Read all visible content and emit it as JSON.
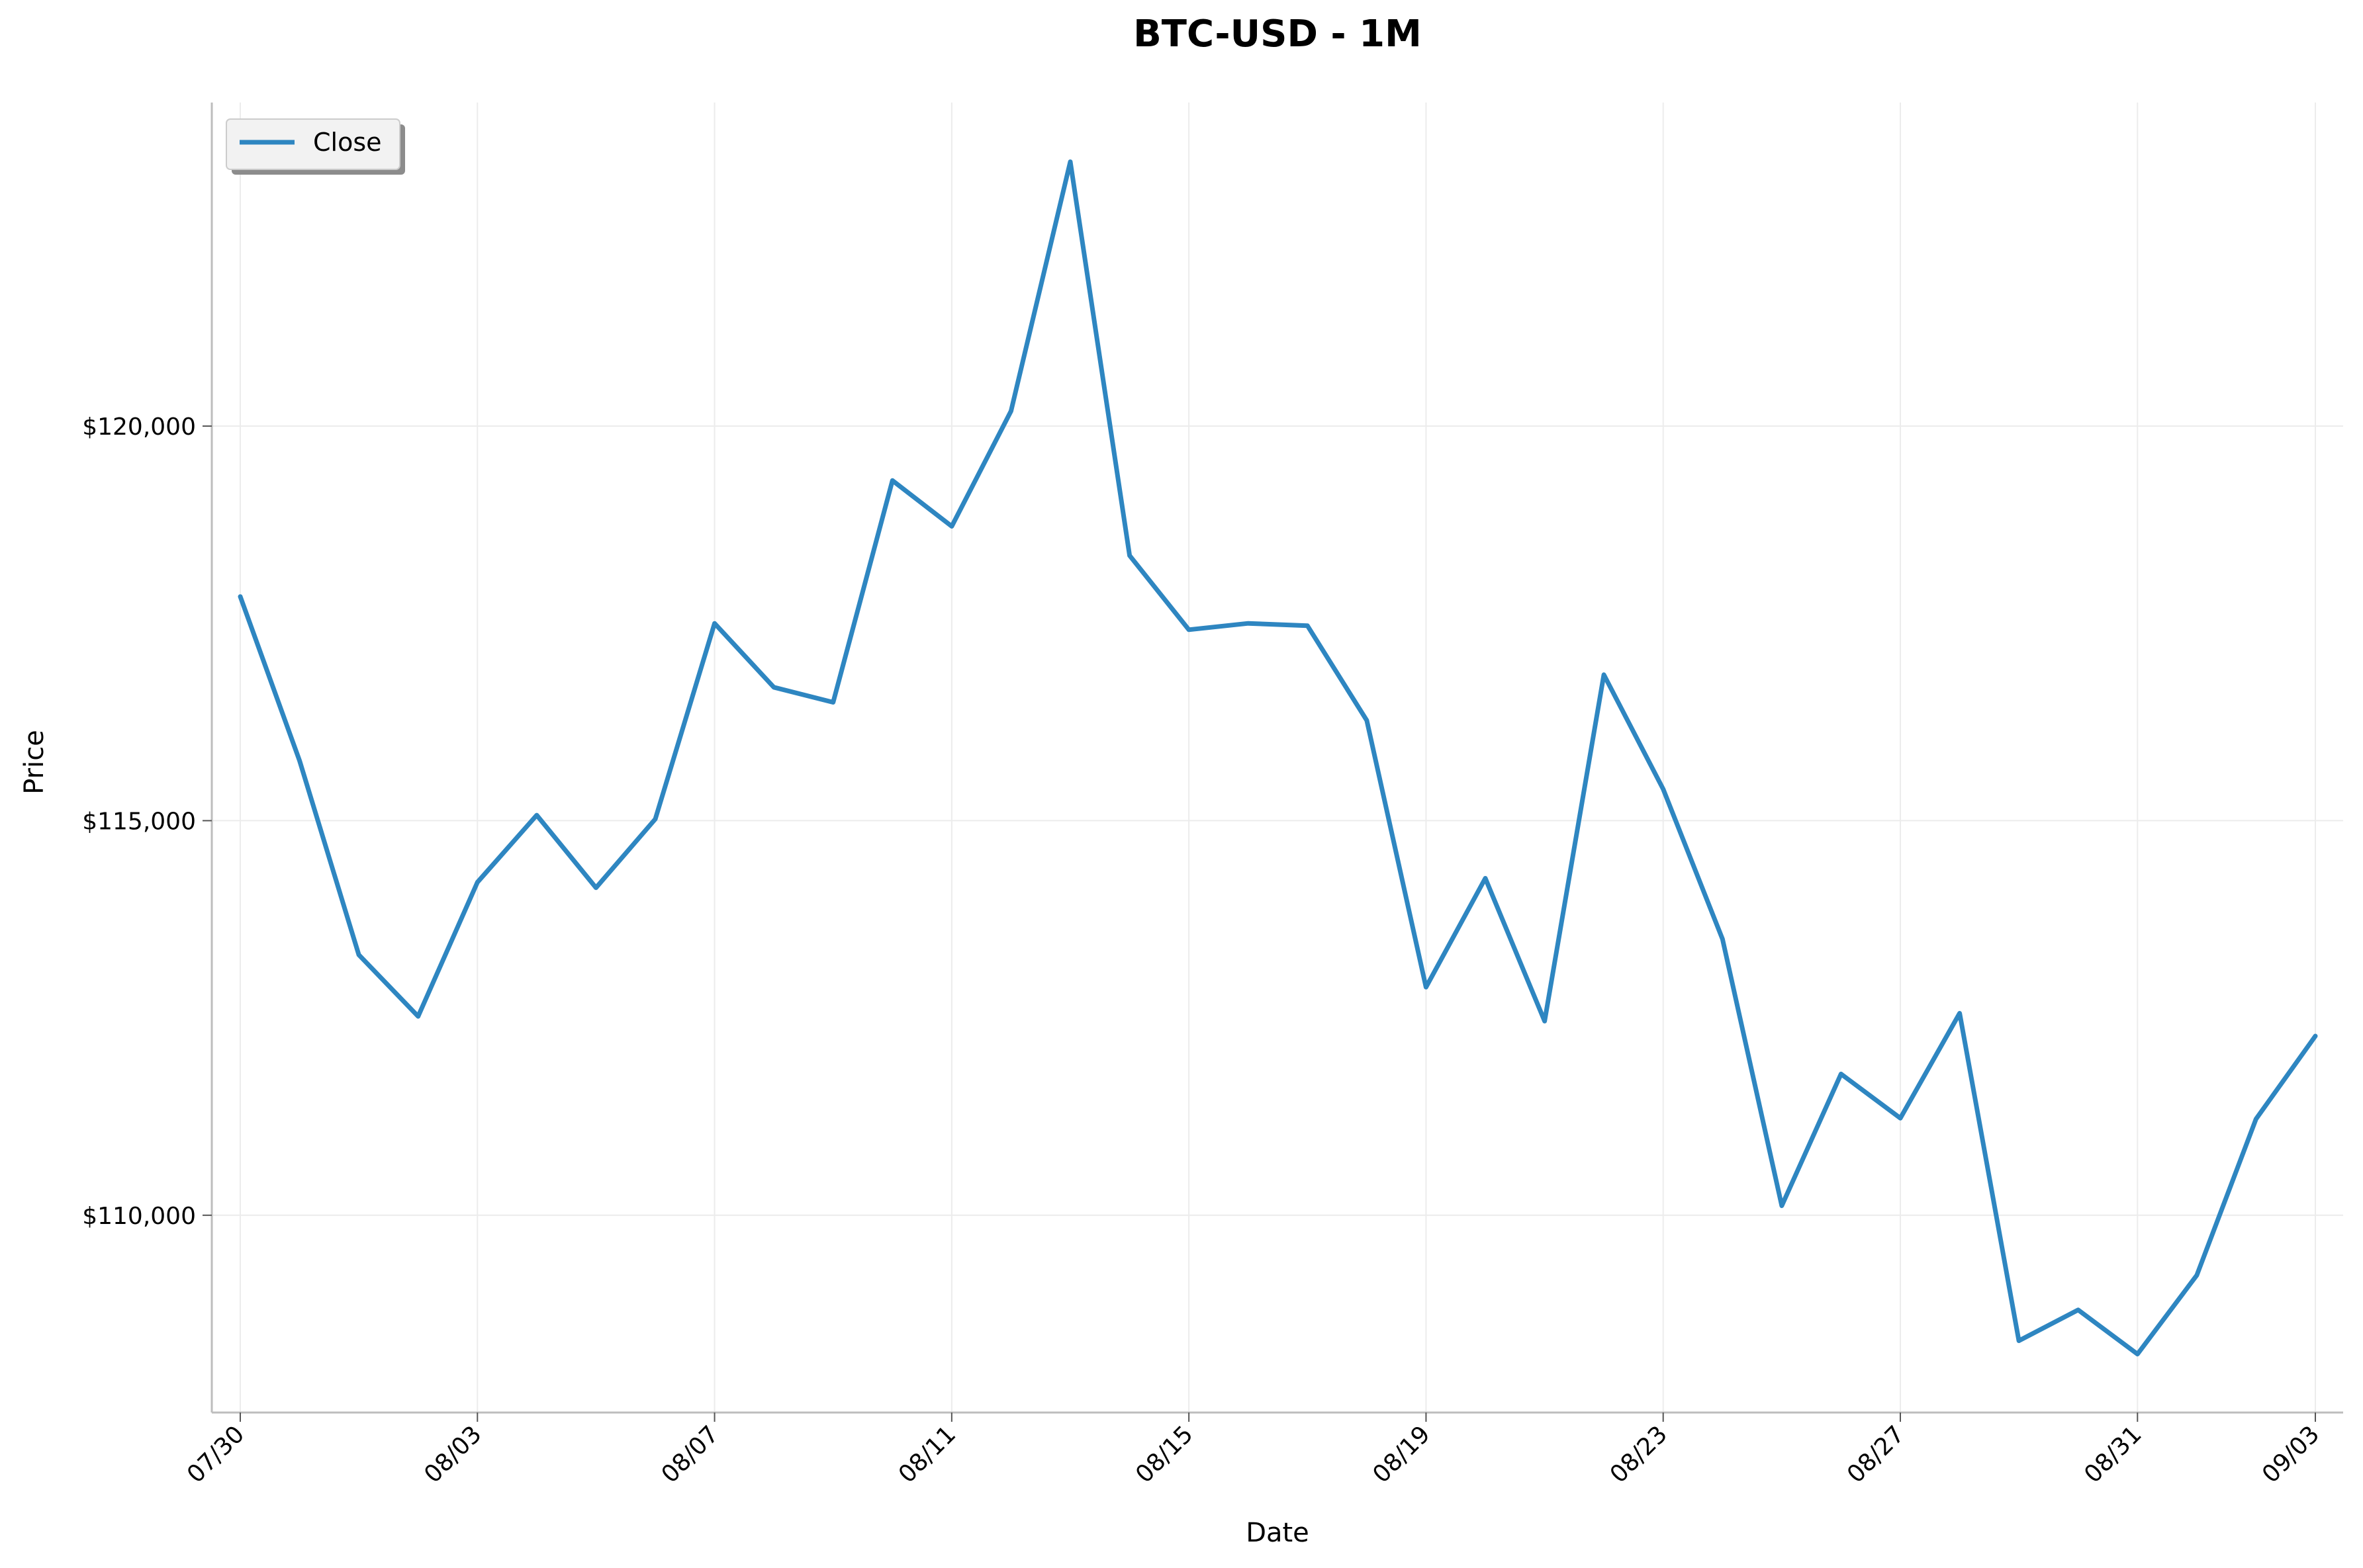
{
  "chart_data": {
    "type": "line",
    "title": "BTC-USD - 1M",
    "xlabel": "Date",
    "ylabel": "Price",
    "x": [
      "2025-07-30",
      "2025-07-31",
      "2025-08-01",
      "2025-08-02",
      "2025-08-03",
      "2025-08-04",
      "2025-08-05",
      "2025-08-06",
      "2025-08-07",
      "2025-08-08",
      "2025-08-09",
      "2025-08-10",
      "2025-08-11",
      "2025-08-12",
      "2025-08-13",
      "2025-08-14",
      "2025-08-15",
      "2025-08-16",
      "2025-08-17",
      "2025-08-18",
      "2025-08-19",
      "2025-08-20",
      "2025-08-21",
      "2025-08-22",
      "2025-08-23",
      "2025-08-24",
      "2025-08-25",
      "2025-08-26",
      "2025-08-27",
      "2025-08-28",
      "2025-08-29",
      "2025-08-30",
      "2025-08-31",
      "2025-09-01",
      "2025-09-02",
      "2025-09-03"
    ],
    "series": [
      {
        "name": "Close",
        "color": "#2e86c1",
        "values": [
          117840,
          115760,
          113300,
          112520,
          114220,
          115070,
          114150,
          115020,
          117500,
          116690,
          116500,
          119310,
          118730,
          120190,
          123350,
          118360,
          117420,
          117500,
          117470,
          116270,
          112890,
          114270,
          112460,
          116850,
          115400,
          113500,
          110120,
          111790,
          111230,
          112560,
          108410,
          108800,
          108240,
          109240,
          111220,
          112270
        ]
      }
    ],
    "xticks": [
      "07/30",
      "08/03",
      "08/07",
      "08/11",
      "08/15",
      "08/19",
      "08/23",
      "08/27",
      "08/31",
      "09/03"
    ],
    "yticks": [
      "$110,000",
      "$115,000",
      "$120,000"
    ],
    "ylim": [
      107500,
      124100
    ],
    "grid": true,
    "legend": "upper-left"
  }
}
